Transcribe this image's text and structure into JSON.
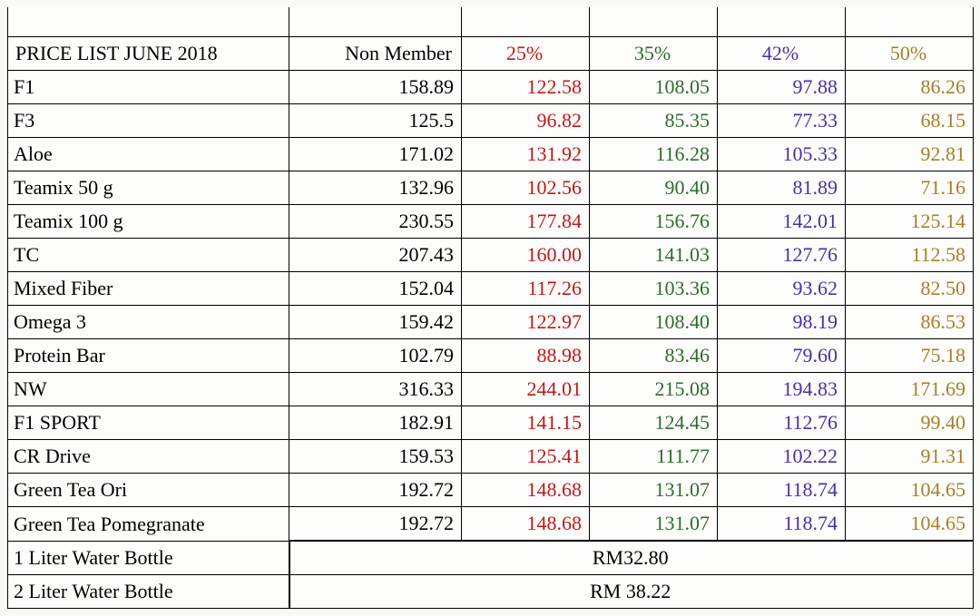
{
  "title": "PRICE LIST JUNE 2018",
  "columns": {
    "non_member": "Non Member",
    "p25": "25%",
    "p35": "35%",
    "p42": "42%",
    "p50": "50%"
  },
  "colors": {
    "p25": "#c01818",
    "p35": "#2f6a2f",
    "p42": "#4a2fa5",
    "p50": "#a48029",
    "text": "#000000",
    "border": "#000000",
    "background": "#fdfdfb"
  },
  "fonts": {
    "family": "Times New Roman",
    "cell_pt": 17,
    "header_pt": 17
  },
  "rows": [
    {
      "name": "F1",
      "nm": "158.89",
      "p25": "122.58",
      "p35": "108.05",
      "p42": "97.88",
      "p50": "86.26"
    },
    {
      "name": "F3",
      "nm": "125.5",
      "p25": "96.82",
      "p35": "85.35",
      "p42": "77.33",
      "p50": "68.15"
    },
    {
      "name": "Aloe",
      "nm": "171.02",
      "p25": "131.92",
      "p35": "116.28",
      "p42": "105.33",
      "p50": "92.81"
    },
    {
      "name": "Teamix 50 g",
      "nm": "132.96",
      "p25": "102.56",
      "p35": "90.40",
      "p42": "81.89",
      "p50": "71.16"
    },
    {
      "name": "Teamix 100 g",
      "nm": "230.55",
      "p25": "177.84",
      "p35": "156.76",
      "p42": "142.01",
      "p50": "125.14"
    },
    {
      "name": "TC",
      "nm": "207.43",
      "p25": "160.00",
      "p35": "141.03",
      "p42": "127.76",
      "p50": "112.58"
    },
    {
      "name": "Mixed Fiber",
      "nm": "152.04",
      "p25": "117.26",
      "p35": "103.36",
      "p42": "93.62",
      "p50": "82.50"
    },
    {
      "name": "Omega 3",
      "nm": "159.42",
      "p25": "122.97",
      "p35": "108.40",
      "p42": "98.19",
      "p50": "86.53"
    },
    {
      "name": "Protein Bar",
      "nm": "102.79",
      "p25": "88.98",
      "p35": "83.46",
      "p42": "79.60",
      "p50": "75.18"
    },
    {
      "name": "NW",
      "nm": "316.33",
      "p25": "244.01",
      "p35": "215.08",
      "p42": "194.83",
      "p50": "171.69"
    },
    {
      "name": "F1 SPORT",
      "nm": "182.91",
      "p25": "141.15",
      "p35": "124.45",
      "p42": "112.76",
      "p50": "99.40"
    },
    {
      "name": "CR Drive",
      "nm": "159.53",
      "p25": "125.41",
      "p35": "111.77",
      "p42": "102.22",
      "p50": "91.31"
    },
    {
      "name": "Green Tea Ori",
      "nm": "192.72",
      "p25": "148.68",
      "p35": "131.07",
      "p42": "118.74",
      "p50": "104.65"
    },
    {
      "name": "Green Tea Pomegranate",
      "nm": "192.72",
      "p25": "148.68",
      "p35": "131.07",
      "p42": "118.74",
      "p50": "104.65"
    }
  ],
  "merged_rows": [
    {
      "name": "1 Liter Water Bottle",
      "value": "RM32.80"
    },
    {
      "name": "2 Liter Water Bottle",
      "value": "RM 38.22"
    }
  ]
}
